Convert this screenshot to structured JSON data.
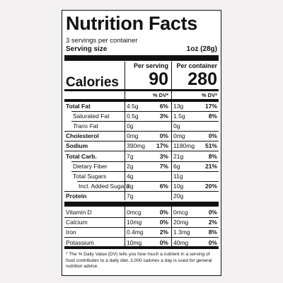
{
  "header": {
    "title": "Nutrition Facts",
    "servings": "3 servings per container",
    "serving_size_label": "Serving size",
    "serving_size": "1oz (28g)"
  },
  "columns": {
    "per_serving": "Per serving",
    "per_container": "Per container"
  },
  "calories": {
    "label": "Calories",
    "per_serving": "90",
    "per_container": "280"
  },
  "dv_header": "% DV*",
  "nutrients": [
    {
      "label": "Total Fat",
      "per_serving": {
        "amount": "4.5g",
        "dv": "6%"
      },
      "per_container": {
        "amount": "13g",
        "dv": "17%"
      }
    },
    {
      "label": "Saturated Fat",
      "per_serving": {
        "amount": "0.5g",
        "dv": "3%"
      },
      "per_container": {
        "amount": "1.5g",
        "dv": "8%"
      }
    },
    {
      "label": "Trans Fat",
      "per_serving": {
        "amount": "0g"
      },
      "per_container": {
        "amount": "0g"
      }
    },
    {
      "label": "Cholesterol",
      "per_serving": {
        "amount": "0mg",
        "dv": "0%"
      },
      "per_container": {
        "amount": "0mg",
        "dv": "0%"
      }
    },
    {
      "label": "Sodium",
      "per_serving": {
        "amount": "390mg",
        "dv": "17%"
      },
      "per_container": {
        "amount": "1180mg",
        "dv": "51%"
      }
    },
    {
      "label": "Total Carb.",
      "per_serving": {
        "amount": "7g",
        "dv": "3%"
      },
      "per_container": {
        "amount": "21g",
        "dv": "8%"
      }
    },
    {
      "label": "Dietary Fiber",
      "per_serving": {
        "amount": "2g",
        "dv": "7%"
      },
      "per_container": {
        "amount": "6g",
        "dv": "21%"
      }
    },
    {
      "label": "Total Sugars",
      "per_serving": {
        "amount": "4g"
      },
      "per_container": {
        "amount": "11g"
      }
    },
    {
      "label": "Incl. Added Sugars",
      "per_serving": {
        "amount": "3g",
        "dv": "6%"
      },
      "per_container": {
        "amount": "10g",
        "dv": "20%"
      }
    },
    {
      "label": "Protein",
      "per_serving": {
        "amount": "7g"
      },
      "per_container": {
        "amount": "20g"
      }
    }
  ],
  "vitamins_minerals": [
    {
      "label": "Vitamin D",
      "per_serving": {
        "amount": "0mcg",
        "dv": "0%"
      },
      "per_container": {
        "amount": "0mcg",
        "dv": "0%"
      }
    },
    {
      "label": "Calcium",
      "per_serving": {
        "amount": "10mg",
        "dv": "0%"
      },
      "per_container": {
        "amount": "20mg",
        "dv": "2%"
      }
    },
    {
      "label": "Iron",
      "per_serving": {
        "amount": "0.4mg",
        "dv": "2%"
      },
      "per_container": {
        "amount": "1.3mg",
        "dv": "8%"
      }
    },
    {
      "label": "Potassium",
      "per_serving": {
        "amount": "10mg",
        "dv": "0%"
      },
      "per_container": {
        "amount": "40mg",
        "dv": "0%"
      }
    }
  ],
  "footnote": "* The % Daily Value (DV) tells you how much a nutrient in a serving of food contributes to a daily diet. 2,000 calories a day is used for general nutrition advice."
}
